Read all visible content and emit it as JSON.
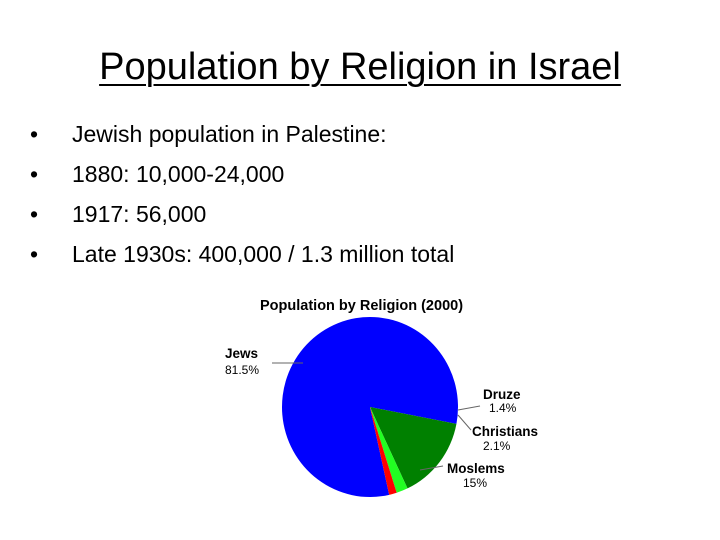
{
  "slide": {
    "title": "Population by Religion in Israel",
    "bullets": [
      "Jewish population in Palestine:",
      "1880: 10,000-24,000",
      "1917: 56,000",
      "Late 1930s: 400,000 / 1.3 million total"
    ],
    "bullet_glyph": "•"
  },
  "chart_data": {
    "type": "pie",
    "title": "Population by Religion (2000)",
    "categories": [
      "Jews",
      "Druze",
      "Christians",
      "Moslems"
    ],
    "values": [
      81.5,
      1.4,
      2.1,
      15
    ],
    "value_labels": [
      "81.5%",
      "1.4%",
      "2.1%",
      "15%"
    ],
    "colors": [
      "#0000ff",
      "#ff0000",
      "#22ff22",
      "#008000"
    ],
    "legend": "none",
    "labels_placement": "outside with leader lines"
  }
}
